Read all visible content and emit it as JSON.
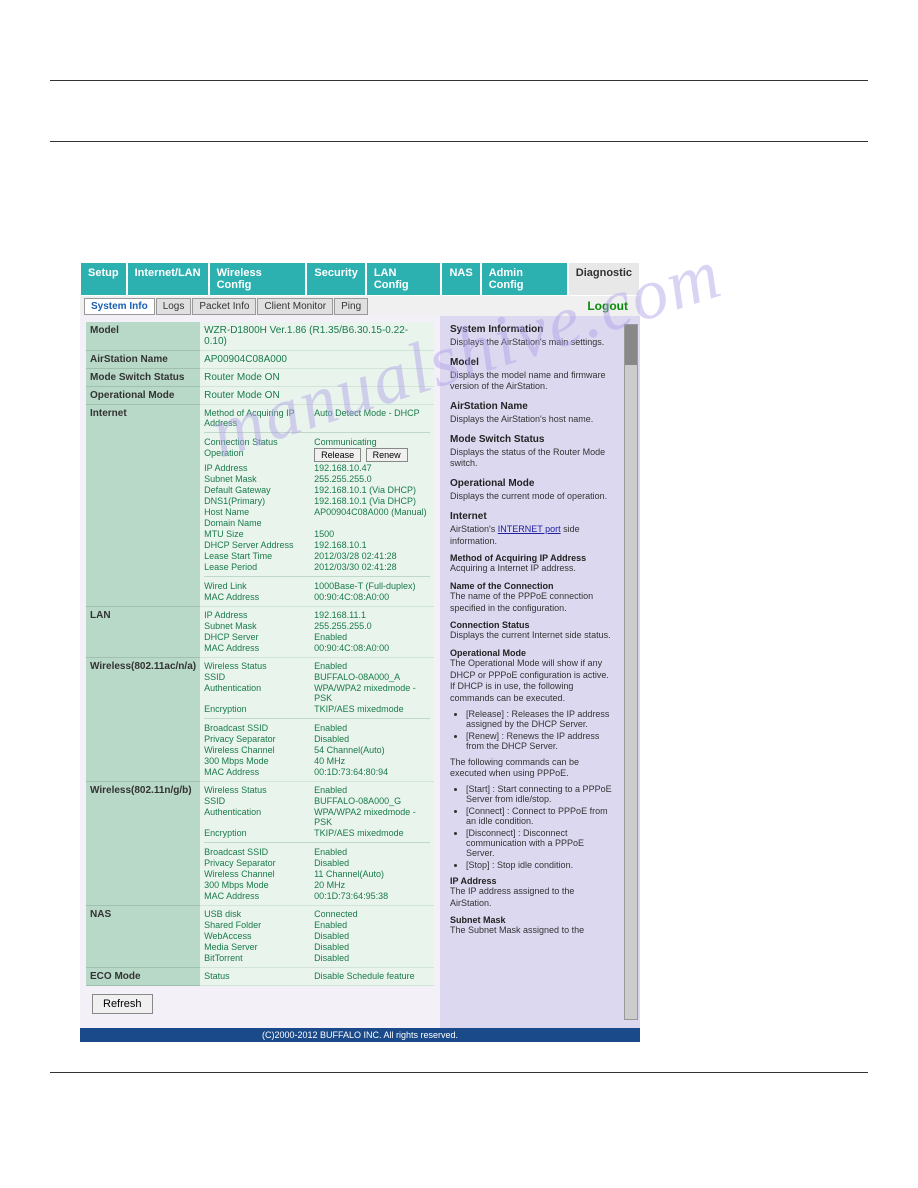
{
  "tabs": {
    "main": [
      "Setup",
      "Internet/LAN",
      "Wireless Config",
      "Security",
      "LAN Config",
      "NAS",
      "Admin Config",
      "Diagnostic"
    ],
    "main_active_idx": 7,
    "sub": [
      "System Info",
      "Logs",
      "Packet Info",
      "Client Monitor",
      "Ping"
    ],
    "sub_active_idx": 0,
    "logout": "Logout"
  },
  "sections": {
    "model": {
      "label": "Model",
      "value": "WZR-D1800H Ver.1.86 (R1.35/B6.30.15-0.22-0.10)"
    },
    "airstation": {
      "label": "AirStation Name",
      "value": "AP00904C08A000"
    },
    "mode_switch": {
      "label": "Mode Switch Status",
      "value": "Router Mode ON"
    },
    "op_mode": {
      "label": "Operational Mode",
      "value": "Router Mode ON"
    },
    "internet": {
      "label": "Internet",
      "method_key": "Method of Acquiring IP Address",
      "method_val": "Auto Detect Mode - DHCP",
      "rows1": [
        {
          "k": "Connection Status",
          "v": "Communicating"
        }
      ],
      "operation_key": "Operation",
      "btn_release": "Release",
      "btn_renew": "Renew",
      "rows2": [
        {
          "k": "IP Address",
          "v": "192.168.10.47"
        },
        {
          "k": "Subnet Mask",
          "v": "255.255.255.0"
        },
        {
          "k": "Default Gateway",
          "v": "192.168.10.1 (Via DHCP)"
        },
        {
          "k": "DNS1(Primary)",
          "v": "192.168.10.1 (Via DHCP)"
        },
        {
          "k": "Host Name",
          "v": "AP00904C08A000 (Manual)"
        },
        {
          "k": "Domain Name",
          "v": ""
        },
        {
          "k": "MTU Size",
          "v": "1500"
        },
        {
          "k": "DHCP Server Address",
          "v": "192.168.10.1"
        },
        {
          "k": "Lease Start Time",
          "v": "2012/03/28 02:41:28"
        },
        {
          "k": "Lease Period",
          "v": "2012/03/30 02:41:28"
        }
      ],
      "rows3": [
        {
          "k": "Wired Link",
          "v": "1000Base-T (Full-duplex)"
        },
        {
          "k": "MAC Address",
          "v": "00:90:4C:08:A0:00"
        }
      ]
    },
    "lan": {
      "label": "LAN",
      "rows": [
        {
          "k": "IP Address",
          "v": "192.168.11.1"
        },
        {
          "k": "Subnet Mask",
          "v": "255.255.255.0"
        },
        {
          "k": "DHCP Server",
          "v": "Enabled"
        },
        {
          "k": "MAC Address",
          "v": "00:90:4C:08:A0:00"
        }
      ]
    },
    "wlan_a": {
      "label": "Wireless(802.11ac/n/a)",
      "rows1": [
        {
          "k": "Wireless Status",
          "v": "Enabled"
        },
        {
          "k": "SSID",
          "v": "BUFFALO-08A000_A"
        },
        {
          "k": "Authentication",
          "v": "WPA/WPA2 mixedmode - PSK"
        },
        {
          "k": "Encryption",
          "v": "TKIP/AES mixedmode"
        }
      ],
      "rows2": [
        {
          "k": "Broadcast SSID",
          "v": "Enabled"
        },
        {
          "k": "Privacy Separator",
          "v": "Disabled"
        },
        {
          "k": "Wireless Channel",
          "v": "54 Channel(Auto)"
        },
        {
          "k": "300 Mbps Mode",
          "v": "40 MHz"
        },
        {
          "k": "MAC Address",
          "v": "00:1D:73:64:80:94"
        }
      ]
    },
    "wlan_b": {
      "label": "Wireless(802.11n/g/b)",
      "rows1": [
        {
          "k": "Wireless Status",
          "v": "Enabled"
        },
        {
          "k": "SSID",
          "v": "BUFFALO-08A000_G"
        },
        {
          "k": "Authentication",
          "v": "WPA/WPA2 mixedmode - PSK"
        },
        {
          "k": "Encryption",
          "v": "TKIP/AES mixedmode"
        }
      ],
      "rows2": [
        {
          "k": "Broadcast SSID",
          "v": "Enabled"
        },
        {
          "k": "Privacy Separator",
          "v": "Disabled"
        },
        {
          "k": "Wireless Channel",
          "v": "11 Channel(Auto)"
        },
        {
          "k": "300 Mbps Mode",
          "v": "20 MHz"
        },
        {
          "k": "MAC Address",
          "v": "00:1D:73:64:95:38"
        }
      ]
    },
    "nas": {
      "label": "NAS",
      "rows": [
        {
          "k": "USB disk",
          "v": "Connected"
        },
        {
          "k": "Shared Folder",
          "v": "Enabled"
        },
        {
          "k": "WebAccess",
          "v": "Disabled"
        },
        {
          "k": "Media Server",
          "v": "Disabled"
        },
        {
          "k": "BitTorrent",
          "v": "Disabled"
        }
      ]
    },
    "eco": {
      "label": "ECO Mode",
      "rows": [
        {
          "k": "Status",
          "v": "Disable Schedule feature"
        }
      ]
    }
  },
  "refresh": "Refresh",
  "footer": "(C)2000-2012 BUFFALO INC. All rights reserved.",
  "side": {
    "h1": "System Information",
    "p1": "Displays the AirStation's main settings.",
    "h2": "Model",
    "p2": "Displays the model name and firmware version of the AirStation.",
    "h3": "AirStation Name",
    "p3": "Displays the AirStation's host name.",
    "h4": "Mode Switch Status",
    "p4": "Displays the status of the Router Mode switch.",
    "h5": "Operational Mode",
    "p5": "Displays the current mode of operation.",
    "h6": "Internet",
    "p6a": "AirStation's ",
    "p6link": "INTERNET port",
    "p6b": " side information.",
    "s1": "Method of Acquiring IP Address",
    "s1p": "Acquiring a Internet IP address.",
    "s2": "Name of the Connection",
    "s2p": "The name of the PPPoE connection specified in the configuration.",
    "s3": "Connection Status",
    "s3p": "Displays the current Internet side status.",
    "s4": "Operational Mode",
    "s4p": "The Operational Mode will show if any DHCP or PPPoE configuration is active. If DHCP is in use, the following commands can be executed.",
    "li1": "[Release] : Releases the IP address assigned by the DHCP Server.",
    "li2": "[Renew] : Renews the IP address from the DHCP Server.",
    "s4p2": "The following commands can be executed when using PPPoE.",
    "li3": "[Start] : Start connecting to a PPPoE Server from idle/stop.",
    "li4": "[Connect] : Connect to PPPoE from an idle condition.",
    "li5": "[Disconnect] : Disconnect communication with a PPPoE Server.",
    "li6": "[Stop] : Stop idle condition.",
    "s5": "IP Address",
    "s5p": "The IP address assigned to the AirStation.",
    "s6": "Subnet Mask",
    "s6p": "The Subnet Mask assigned to the"
  },
  "watermark": "manualslib.com"
}
